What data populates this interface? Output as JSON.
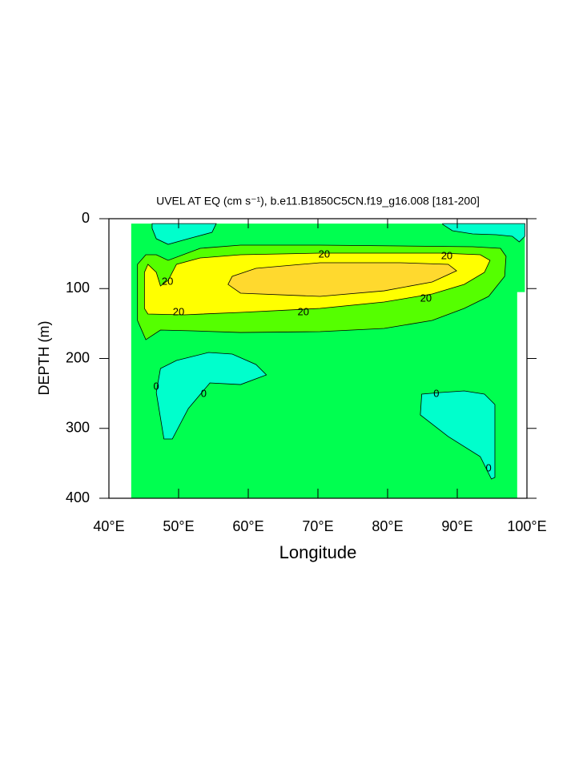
{
  "chart_data": {
    "type": "contour",
    "title": "UVEL AT EQ (cm s⁻¹), b.e11.B1850C5CN.f19_g16.008 [181-200]",
    "xlabel": "Longitude",
    "ylabel": "DEPTH (m)",
    "xlim": [
      40,
      100
    ],
    "ylim": [
      0,
      400
    ],
    "yreverse": true,
    "xticks": [
      {
        "value": 40,
        "label": "40°E"
      },
      {
        "value": 50,
        "label": "50°E"
      },
      {
        "value": 60,
        "label": "60°E"
      },
      {
        "value": 70,
        "label": "70°E"
      },
      {
        "value": 80,
        "label": "80°E"
      },
      {
        "value": 90,
        "label": "90°E"
      },
      {
        "value": 100,
        "label": "100°E"
      }
    ],
    "yticks": [
      0,
      100,
      200,
      300,
      400
    ],
    "fills": [
      {
        "color": "#00ff50",
        "x": [
          43.2,
          99.7,
          99.7,
          98.6,
          98.6,
          43.2
        ],
        "y": [
          7,
          7,
          105,
          105,
          400,
          400
        ]
      },
      {
        "color": "#00ffcc",
        "x": [
          46.2,
          55.4,
          54.8,
          51.4,
          48.5,
          46.8,
          46.2
        ],
        "y": [
          7,
          7,
          19.5,
          28.7,
          36.7,
          28.7,
          13.8
        ]
      },
      {
        "color": "#00ffcc",
        "x": [
          87.9,
          99.7,
          99.7,
          98.9,
          97.9,
          95.6,
          92.2,
          89.3,
          87.9
        ],
        "y": [
          7,
          7,
          25.2,
          33.2,
          25.2,
          22.9,
          21.8,
          17.2,
          8.1
        ]
      },
      {
        "color": "#55ff00",
        "x": [
          45.3,
          44.1,
          44.1,
          45.3,
          47.4,
          52.0,
          58.9,
          70.3,
          79.5,
          86.4,
          91.0,
          94.5,
          96.8,
          97.0,
          96.2,
          92.2,
          81.8,
          70.3,
          58.9,
          53.1,
          48.5,
          46.8
        ],
        "y": [
          51.6,
          65.3,
          145.6,
          173.1,
          159.3,
          160.5,
          162.8,
          161.6,
          157.0,
          145.6,
          128.4,
          111.2,
          82.5,
          53.9,
          42.4,
          40.1,
          39.0,
          37.8,
          37.8,
          42.4,
          59.6,
          51.6
        ]
      },
      {
        "color": "#ffff00",
        "x": [
          45.6,
          45.1,
          45.1,
          45.6,
          50.8,
          58.9,
          70.3,
          79.5,
          86.4,
          91.0,
          93.9,
          94.7,
          93.3,
          87.6,
          81.8,
          70.3,
          58.9,
          53.1,
          49.7,
          48.5,
          47.4,
          46.8
        ],
        "y": [
          65.3,
          76.8,
          128.4,
          136.4,
          137.5,
          134.1,
          128.4,
          119.2,
          107.7,
          94.0,
          76.8,
          59.6,
          51.6,
          49.3,
          49.3,
          49.3,
          51.6,
          56.2,
          65.3,
          88.3,
          96.3,
          76.8
        ]
      },
      {
        "color": "#ffd92e",
        "x": [
          57.7,
          57.1,
          58.9,
          70.3,
          79.5,
          86.4,
          89.9,
          88.7,
          81.8,
          70.3,
          61.1
        ],
        "y": [
          82.5,
          94.0,
          106.6,
          111.2,
          103.2,
          90.5,
          74.5,
          65.3,
          63.0,
          63.0,
          71.1
        ]
      },
      {
        "color": "#00ffcc",
        "x": [
          47.4,
          46.8,
          47.9,
          49.1,
          51.4,
          54.5,
          58.9,
          62.6,
          61.1,
          57.7,
          54.3,
          49.7
        ],
        "y": [
          214.3,
          248.7,
          315.2,
          315.2,
          271.6,
          235.0,
          237.3,
          223.5,
          208.6,
          193.7,
          191.4,
          202.9
        ]
      },
      {
        "color": "#00ffcc",
        "x": [
          84.9,
          84.7,
          88.7,
          93.3,
          94.9,
          95.4,
          95.4,
          95.4,
          93.9,
          91.0,
          87.6
        ],
        "y": [
          251.0,
          280.8,
          311.7,
          340.4,
          372.5,
          370.2,
          328.9,
          265.9,
          251.0,
          246.4,
          248.7
        ]
      }
    ],
    "contour_labels": [
      {
        "label": "20",
        "x": 70.9,
        "y": 51.6
      },
      {
        "label": "20",
        "x": 88.5,
        "y": 53.9
      },
      {
        "label": "20",
        "x": 48.4,
        "y": 90.5
      },
      {
        "label": "20",
        "x": 50.0,
        "y": 134.1
      },
      {
        "label": "20",
        "x": 67.9,
        "y": 134.1
      },
      {
        "label": "20",
        "x": 85.5,
        "y": 114.6
      },
      {
        "label": "0",
        "x": 46.8,
        "y": 240.7
      },
      {
        "label": "0",
        "x": 53.6,
        "y": 251.0
      },
      {
        "label": "0",
        "x": 87.0,
        "y": 251.0
      },
      {
        "label": "0",
        "x": 94.5,
        "y": 357.6
      }
    ]
  }
}
